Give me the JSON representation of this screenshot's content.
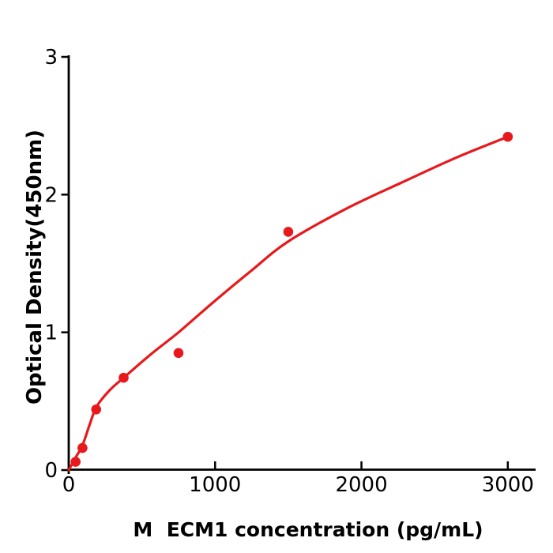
{
  "figure": {
    "background": "#ffffff"
  },
  "chart_data": {
    "type": "scatter",
    "title": "",
    "xlabel": "M  ECM1 concentration (pg/mL)",
    "ylabel": "Optical Density(450nm)",
    "xticks": [
      0,
      1000,
      2000,
      3000
    ],
    "yticks": [
      0,
      1,
      2,
      3
    ],
    "xlim": [
      0,
      3190
    ],
    "ylim": [
      0,
      3
    ],
    "grid": false,
    "legend": null,
    "point_color": "#e8191c",
    "line_color": "#e8191c",
    "axis_color": "#000000",
    "text_color": "#000000",
    "points": {
      "x": [
        46.9,
        93.8,
        187.5,
        375,
        750,
        1500,
        3000
      ],
      "y": [
        0.06,
        0.16,
        0.44,
        0.67,
        0.85,
        1.73,
        2.42
      ]
    },
    "fit_curve": [
      [
        0,
        0.0
      ],
      [
        47,
        0.09
      ],
      [
        94,
        0.18
      ],
      [
        140,
        0.32
      ],
      [
        190,
        0.46
      ],
      [
        280,
        0.58
      ],
      [
        375,
        0.67
      ],
      [
        560,
        0.84
      ],
      [
        750,
        1.0
      ],
      [
        1000,
        1.23
      ],
      [
        1250,
        1.45
      ],
      [
        1500,
        1.66
      ],
      [
        1900,
        1.9
      ],
      [
        2300,
        2.1
      ],
      [
        2650,
        2.27
      ],
      [
        3000,
        2.42
      ]
    ]
  }
}
